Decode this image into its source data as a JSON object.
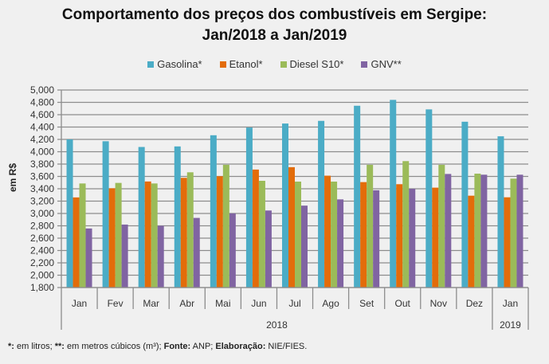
{
  "chart_data": {
    "type": "bar",
    "title": "Comportamento dos preços dos combustíveis em Sergipe: Jan/2018 a Jan/2019",
    "title_lines": [
      "Comportamento dos preços dos combustíveis em Sergipe:",
      "Jan/2018 a Jan/2019"
    ],
    "xlabel": "",
    "ylabel": "em R$",
    "ylim": [
      1800,
      5000
    ],
    "ytick_step": 200,
    "yticks": [
      "1,800",
      "2,000",
      "2,200",
      "2,400",
      "2,600",
      "2,800",
      "3,000",
      "3,200",
      "3,400",
      "3,600",
      "3,800",
      "4,000",
      "4,200",
      "4,400",
      "4,600",
      "4,800",
      "5,000"
    ],
    "grid": true,
    "legend_position": "top",
    "categories": [
      "Jan",
      "Fev",
      "Mar",
      "Abr",
      "Mai",
      "Jun",
      "Jul",
      "Ago",
      "Set",
      "Out",
      "Nov",
      "Dez",
      "Jan"
    ],
    "year_groups": [
      {
        "label": "2018",
        "count": 12
      },
      {
        "label": "2019",
        "count": 1
      }
    ],
    "series": [
      {
        "name": "Gasolina*",
        "color": "#4bacc6",
        "values": [
          4200,
          4170,
          4077,
          4086,
          4267,
          4392,
          4457,
          4500,
          4745,
          4840,
          4686,
          4486,
          4250
        ]
      },
      {
        "name": "Etanol*",
        "color": "#e36c0a",
        "values": [
          3260,
          3408,
          3518,
          3577,
          3603,
          3711,
          3750,
          3612,
          3508,
          3474,
          3418,
          3288,
          3262
        ]
      },
      {
        "name": "Diesel S10*",
        "color": "#9bbb59",
        "values": [
          3486,
          3495,
          3486,
          3667,
          3788,
          3529,
          3516,
          3516,
          3788,
          3848,
          3788,
          3645,
          3564
        ]
      },
      {
        "name": "GNV**",
        "color": "#8064a2",
        "values": [
          2757,
          2820,
          2800,
          2928,
          3001,
          3048,
          3127,
          3228,
          3376,
          3400,
          3640,
          3628,
          3628
        ]
      }
    ]
  },
  "footnote": {
    "p1_bold": "*:",
    "p1": " em litros; ",
    "p2_bold": "**:",
    "p2": " em metros cúbicos (m³); ",
    "p3_bold": "Fonte:",
    "p3": " ANP; ",
    "p4_bold": "Elaboração:",
    "p4": " NIE/FIES."
  }
}
